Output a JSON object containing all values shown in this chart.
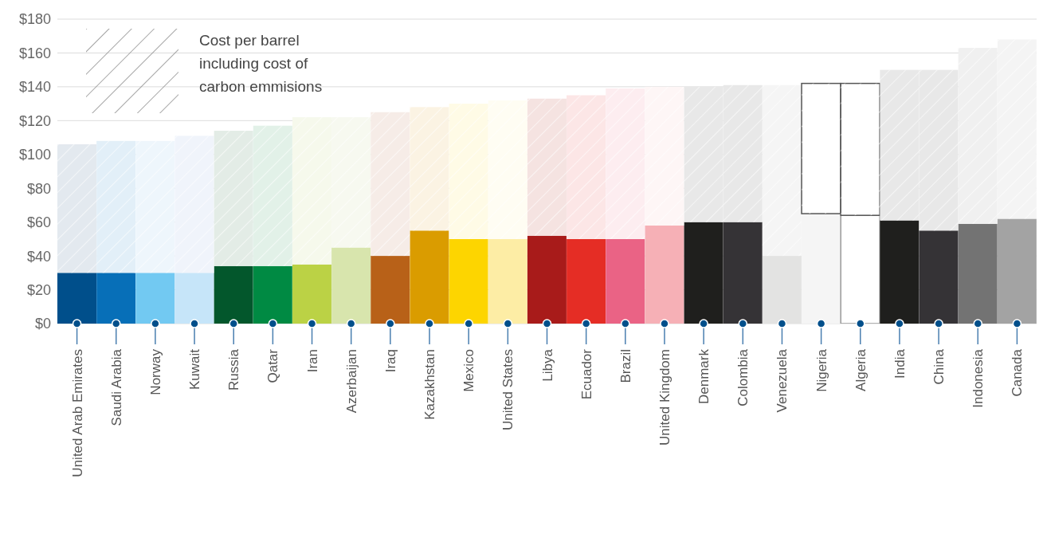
{
  "chart_data": {
    "type": "bar",
    "stacked": true,
    "categories": [
      "United Arab Emirates",
      "Saudi Arabia",
      "Norway",
      "Kuwait",
      "Russia",
      "Qatar",
      "Iran",
      "Azerbaijan",
      "Iraq",
      "Kazakhstan",
      "Mexico",
      "United States",
      "Libya",
      "Ecuador",
      "Brazil",
      "United Kingdom",
      "Denmark",
      "Colombia",
      "Venezuela",
      "Nigeria",
      "Algeria",
      "India",
      "China",
      "Indonesia",
      "Canada"
    ],
    "series": [
      {
        "colors": [
          "#004f8b",
          "#076fb8",
          "#72c9f2",
          "#c6e5f9",
          "#03572c",
          "#008a43",
          "#bbd245",
          "#d8e5ad",
          "#b86118",
          "#da9c00",
          "#fdd500",
          "#fdeda5",
          "#a81b1a",
          "#e52d25",
          "#ea6385",
          "#f6b0b6",
          "#1f1f1d",
          "#353336",
          "#e3e3e2",
          "#f5f5f5",
          "#ffffff",
          "#1f1f1d",
          "#353336",
          "#737373",
          "#a3a3a3"
        ],
        "values": [
          30,
          30,
          30,
          30,
          34,
          34,
          35,
          45,
          40,
          55,
          50,
          50,
          52,
          50,
          50,
          58,
          60,
          60,
          40,
          65,
          64,
          61,
          55,
          59,
          62
        ]
      },
      {
        "name": "Cost per barrel including cost of carbon emmisions",
        "color": "#888888",
        "colors": [
          "#e3e9ef",
          "#e2eff8",
          "#eef6fc",
          "#f0f4fb",
          "#e3ece6",
          "#e2f1e8",
          "#f6f9ec",
          "#f7f9f0",
          "#f6ece7",
          "#fbf3e3",
          "#fffbe6",
          "#fffdf3",
          "#f5e3e1",
          "#fce6e6",
          "#fdedf0",
          "#fef6f6",
          "#e8e8e8",
          "#e8e8e8",
          "#f5f5f5",
          "#ffffff",
          "#ffffff",
          "#e8e8e8",
          "#e8e8e8",
          "#f0f0f0",
          "#f4f4f4"
        ],
        "values": [
          76,
          78,
          78,
          81,
          80,
          83,
          87,
          77,
          85,
          73,
          80,
          82,
          81,
          85,
          89,
          82,
          80,
          81,
          101,
          77,
          78,
          89,
          95,
          104,
          106
        ]
      }
    ],
    "ylim": [
      0,
      180
    ],
    "yticks": [
      {
        "value": 0,
        "label": "$0"
      },
      {
        "value": 20,
        "label": "$20"
      },
      {
        "value": 40,
        "label": "$40"
      },
      {
        "value": 60,
        "label": "$60"
      },
      {
        "value": 80,
        "label": "$80"
      },
      {
        "value": 100,
        "label": "$100"
      },
      {
        "value": 120,
        "label": "$120"
      },
      {
        "value": 140,
        "label": "$140"
      },
      {
        "value": 160,
        "label": "$160"
      },
      {
        "value": 180,
        "label": "$180"
      }
    ],
    "grid": "y",
    "legend": "top left"
  }
}
